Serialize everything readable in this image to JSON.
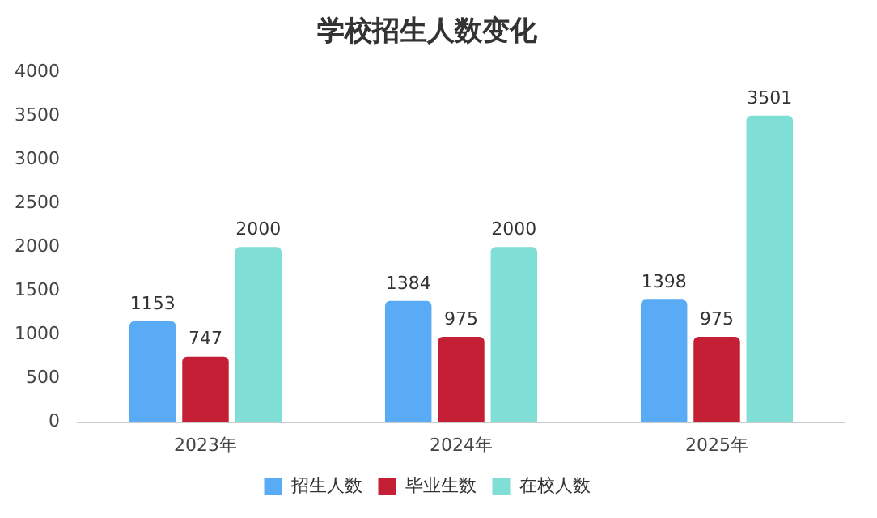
{
  "chart_data": {
    "type": "bar",
    "title": "学校招生人数变化",
    "categories": [
      "2023年",
      "2024年",
      "2025年"
    ],
    "series": [
      {
        "name": "招生人数",
        "color": "#5aabf6",
        "values": [
          1153,
          1384,
          1398
        ]
      },
      {
        "name": "毕业生数",
        "color": "#c41f34",
        "values": [
          747,
          975,
          975
        ]
      },
      {
        "name": "在校人数",
        "color": "#7fdfd6",
        "values": [
          2000,
          2000,
          3501
        ]
      }
    ],
    "ylim": [
      0,
      4000
    ],
    "yticks": [
      0,
      500,
      1000,
      1500,
      2000,
      2500,
      3000,
      3500,
      4000
    ],
    "grid": false,
    "legend": "bottom",
    "data_labels": true
  }
}
